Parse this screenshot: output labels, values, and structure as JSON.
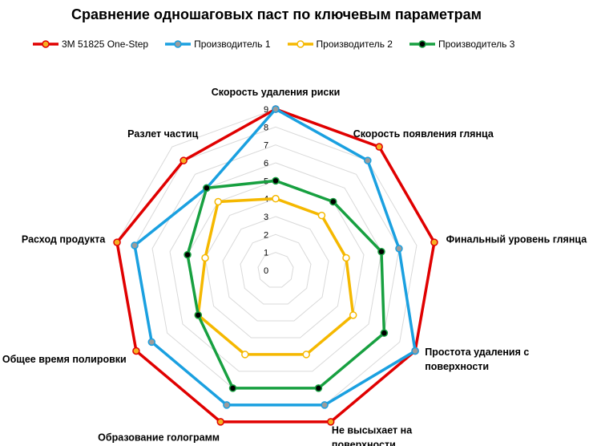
{
  "chart_data": {
    "type": "radar",
    "title": "Сравнение одношаговых паст по ключевым параметрам",
    "axes": [
      [
        "Скорость удаления риски"
      ],
      [
        "Скорость появления глянца"
      ],
      [
        "Финальный уровень глянца"
      ],
      [
        "Простота удаления с",
        "поверхности"
      ],
      [
        "Не высыхает на",
        "поверхности"
      ],
      [
        "Образование голограмм"
      ],
      [
        "Общее время полировки"
      ],
      [
        "Расход продукта"
      ],
      [
        "Разлет частиц"
      ]
    ],
    "ticks": [
      "0",
      "1",
      "2",
      "3",
      "4",
      "5",
      "6",
      "7",
      "8",
      "9"
    ],
    "range": [
      0,
      9
    ],
    "series": [
      {
        "name": "3M 51825 One-Step",
        "color": "#e00000",
        "marker": "#f5b021",
        "values": [
          9,
          9,
          9,
          9,
          9,
          9,
          9,
          9,
          8
        ]
      },
      {
        "name": "Производитель 1",
        "color": "#1aa0e0",
        "marker": "#9c9c9c",
        "values": [
          9,
          8,
          7,
          9,
          8,
          8,
          8,
          8,
          6
        ]
      },
      {
        "name": "Производитель 2",
        "color": "#f5b800",
        "marker": "#ffffff",
        "values": [
          4,
          4,
          4,
          5,
          5,
          5,
          5,
          4,
          5
        ]
      },
      {
        "name": "Производитель 3",
        "color": "#17a040",
        "marker": "#000000",
        "values": [
          5,
          5,
          6,
          7,
          7,
          7,
          5,
          5,
          6
        ]
      }
    ],
    "grid": true,
    "legend": "top"
  }
}
